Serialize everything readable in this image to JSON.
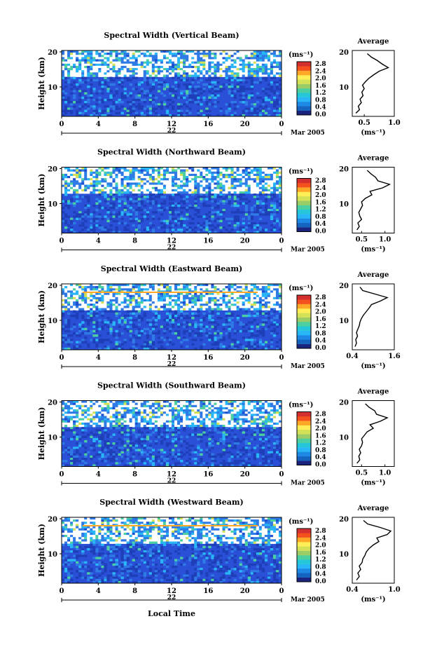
{
  "colorbar": {
    "unit_label": "(ms⁻¹)",
    "ticks": [
      "0.0",
      "0.4",
      "0.8",
      "1.2",
      "1.6",
      "2.0",
      "2.4",
      "2.8"
    ],
    "tick_values": [
      0.0,
      0.4,
      0.8,
      1.2,
      1.6,
      2.0,
      2.4,
      2.8
    ],
    "colors": [
      "#1a237e",
      "#1565c0",
      "#1e88e5",
      "#29b6f6",
      "#26c6da",
      "#4dd0a1",
      "#9ccc65",
      "#d4e157",
      "#ffee58",
      "#ffa726",
      "#f4511e",
      "#d32f2f"
    ]
  },
  "shared": {
    "ylabel": "Height (km)",
    "yticks": [
      "20",
      "10"
    ],
    "xticks": [
      "0",
      "4",
      "8",
      "12",
      "16",
      "20",
      "0"
    ],
    "date_day": "22",
    "date_month_year": "Mar 2005",
    "avg_title": "Average",
    "avg_unit": "(ms⁻¹)",
    "xlabel": "Local Time"
  },
  "chart_data": [
    {
      "type": "heatmap",
      "title": "Spectral Width (Vertical Beam)",
      "x_range": [
        0,
        24
      ],
      "y_range": [
        2,
        20
      ],
      "average_profile": {
        "xticks": [
          "0.5",
          "1.0"
        ],
        "xlim": [
          0.3,
          1.0
        ],
        "height_km": [
          2.5,
          3.5,
          4.5,
          5.5,
          6.5,
          7.5,
          8.5,
          9.5,
          10.5,
          11.5,
          12.5,
          13.5,
          14.5,
          15.5,
          16.5,
          17.5,
          18.5,
          19.5
        ],
        "width": [
          0.36,
          0.42,
          0.4,
          0.45,
          0.43,
          0.48,
          0.46,
          0.5,
          0.47,
          0.52,
          0.58,
          0.66,
          0.75,
          0.9,
          0.8,
          0.72,
          0.62,
          0.55
        ]
      }
    },
    {
      "type": "heatmap",
      "title": "Spectral Width (Northward Beam)",
      "x_range": [
        0,
        24
      ],
      "y_range": [
        2,
        20
      ],
      "average_profile": {
        "xticks": [
          "0.5",
          "1.0"
        ],
        "xlim": [
          0.3,
          1.2
        ],
        "height_km": [
          2.5,
          3.5,
          4.5,
          5.5,
          6.5,
          7.5,
          8.5,
          9.5,
          10.5,
          11.5,
          12.5,
          13.5,
          14.5,
          15.5,
          16.5,
          17.5,
          18.5,
          19.5
        ],
        "width": [
          0.4,
          0.45,
          0.42,
          0.5,
          0.46,
          0.44,
          0.48,
          0.52,
          0.5,
          0.58,
          0.72,
          0.68,
          0.95,
          1.1,
          0.85,
          0.8,
          0.7,
          0.62
        ]
      }
    },
    {
      "type": "heatmap",
      "title": "Spectral Width (Eastward Beam)",
      "x_range": [
        0,
        24
      ],
      "y_range": [
        2,
        20
      ],
      "average_profile": {
        "xticks": [
          "0.4",
          "1.6"
        ],
        "xlim": [
          0.4,
          1.6
        ],
        "height_km": [
          2.5,
          3.5,
          4.5,
          5.5,
          6.5,
          7.5,
          8.5,
          9.5,
          10.5,
          11.5,
          12.5,
          13.5,
          14.5,
          15.5,
          16.5,
          17.5,
          18.5,
          19.5
        ],
        "width": [
          0.48,
          0.52,
          0.5,
          0.55,
          0.52,
          0.56,
          0.6,
          0.62,
          0.66,
          0.72,
          0.8,
          0.88,
          0.95,
          1.2,
          1.4,
          1.05,
          0.7,
          0.62
        ]
      }
    },
    {
      "type": "heatmap",
      "title": "Spectral Width (Southward Beam)",
      "x_range": [
        0,
        24
      ],
      "y_range": [
        2,
        20
      ],
      "average_profile": {
        "xticks": [
          "0.5",
          "1.0"
        ],
        "xlim": [
          0.3,
          1.2
        ],
        "height_km": [
          2.5,
          3.5,
          4.5,
          5.5,
          6.5,
          7.5,
          8.5,
          9.5,
          10.5,
          11.5,
          12.5,
          13.5,
          14.5,
          15.5,
          16.5,
          17.5,
          18.5,
          19.5
        ],
        "width": [
          0.4,
          0.46,
          0.44,
          0.48,
          0.45,
          0.5,
          0.52,
          0.5,
          0.56,
          0.62,
          0.75,
          0.68,
          0.9,
          1.05,
          0.82,
          0.78,
          0.66,
          0.58
        ]
      }
    },
    {
      "type": "heatmap",
      "title": "Spectral Width (Westward Beam)",
      "x_range": [
        0,
        24
      ],
      "y_range": [
        2,
        20
      ],
      "average_profile": {
        "xticks": [
          "0.4",
          "1.0"
        ],
        "xlim": [
          0.4,
          1.0
        ],
        "height_km": [
          2.5,
          3.5,
          4.5,
          5.5,
          6.5,
          7.5,
          8.5,
          9.5,
          10.5,
          11.5,
          12.5,
          13.5,
          14.5,
          15.5,
          16.5,
          17.5,
          18.5,
          19.5
        ],
        "width": [
          0.46,
          0.5,
          0.48,
          0.52,
          0.5,
          0.54,
          0.55,
          0.58,
          0.6,
          0.64,
          0.7,
          0.78,
          0.75,
          0.9,
          0.95,
          0.8,
          0.62,
          0.56
        ]
      }
    }
  ]
}
